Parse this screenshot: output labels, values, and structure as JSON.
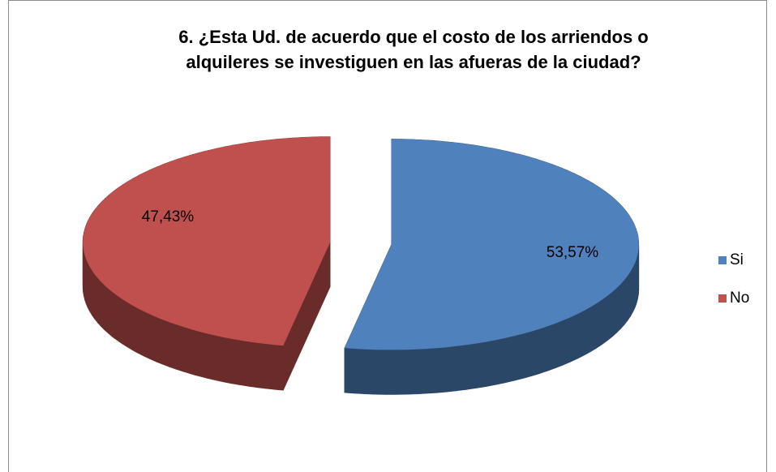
{
  "chart_data": {
    "type": "pie",
    "title": [
      "6. ¿Esta Ud. de acuerdo que el costo  de los arriendos o",
      "alquileres se investiguen en las afueras de la ciudad?"
    ],
    "categories": [
      "Si",
      "No"
    ],
    "values": [
      53.57,
      47.43
    ],
    "value_labels": [
      "53,57%",
      "47,43%"
    ],
    "colors": [
      "#4f81bd",
      "#c0504d"
    ],
    "three_d": true,
    "exploded": true,
    "legend": "right"
  }
}
